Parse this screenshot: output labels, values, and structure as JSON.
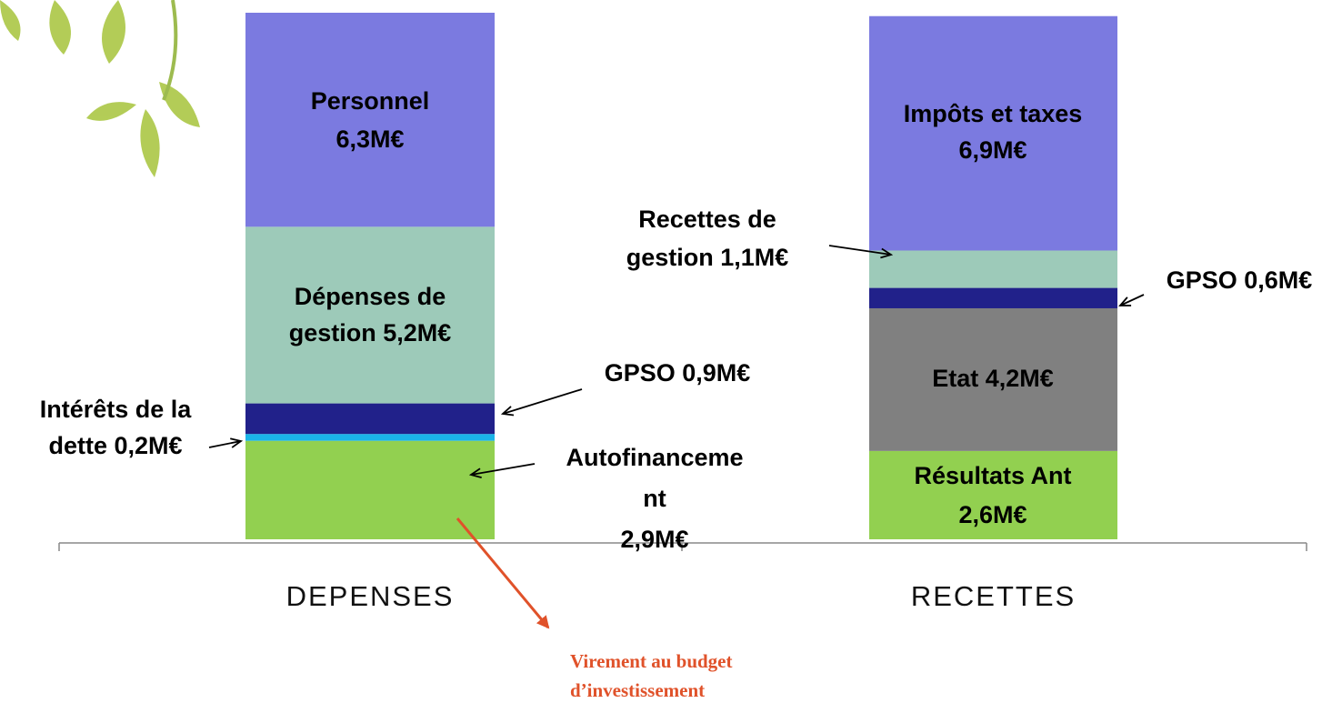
{
  "chart_data": {
    "type": "stacked-bar",
    "bars": [
      {
        "category": "DEPENSES",
        "segments": [
          {
            "value": 2.9,
            "color": "#92d050",
            "label": [
              "Autofinanceme",
              "nt",
              "2,9M€"
            ]
          },
          {
            "value": 0.2,
            "color": "#1ab4e8",
            "label": [
              "Intérêts de la",
              "dette 0,2M€"
            ]
          },
          {
            "value": 0.9,
            "color": "#21218a",
            "label": [
              "GPSO 0,9M€"
            ]
          },
          {
            "value": 5.2,
            "color": "#9dcab9",
            "label": [
              "Dépenses de",
              "gestion 5,2M€"
            ]
          },
          {
            "value": 6.3,
            "color": "#7b7ae0",
            "label": [
              "Personnel",
              "6,3M€"
            ]
          }
        ]
      },
      {
        "category": "RECETTES",
        "segments": [
          {
            "value": 2.6,
            "color": "#92d050",
            "label": [
              "Résultats  Ant",
              "2,6M€"
            ]
          },
          {
            "value": 4.2,
            "color": "#808080",
            "label": [
              "Etat 4,2M€"
            ]
          },
          {
            "value": 0.6,
            "color": "#21218a",
            "label": [
              "GPSO 0,6M€"
            ]
          },
          {
            "value": 1.1,
            "color": "#9dcab9",
            "label": [
              "Recettes de",
              "gestion 1,1M€"
            ]
          },
          {
            "value": 6.9,
            "color": "#7b7ae0",
            "label": [
              "Impôts et taxes",
              "6,9M€"
            ]
          }
        ]
      }
    ],
    "annotation": [
      "Virement au budget",
      "d’investissement"
    ]
  }
}
